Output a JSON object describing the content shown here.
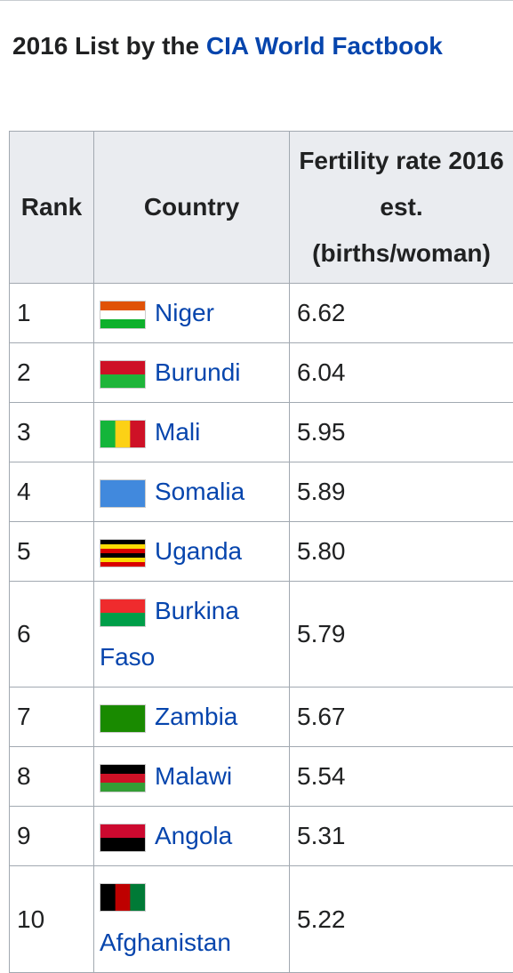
{
  "heading": {
    "text": "2016 List by the ",
    "link": "CIA World Factbook"
  },
  "table": {
    "headers": [
      "Rank",
      "Country",
      "Fertility rate 2016 est. (births/woman)"
    ],
    "rows": [
      [
        "1",
        "Niger",
        "6.62"
      ],
      [
        "2",
        "Burundi",
        "6.04"
      ],
      [
        "3",
        "Mali",
        "5.95"
      ],
      [
        "4",
        "Somalia",
        "5.89"
      ],
      [
        "5",
        "Uganda",
        "5.80"
      ],
      [
        "6",
        "Burkina Faso",
        "5.79"
      ],
      [
        "7",
        "Zambia",
        "5.67"
      ],
      [
        "8",
        "Malawi",
        "5.54"
      ],
      [
        "9",
        "Angola",
        "5.31"
      ],
      [
        "10",
        "Afghanistan",
        "5.22"
      ]
    ]
  }
}
